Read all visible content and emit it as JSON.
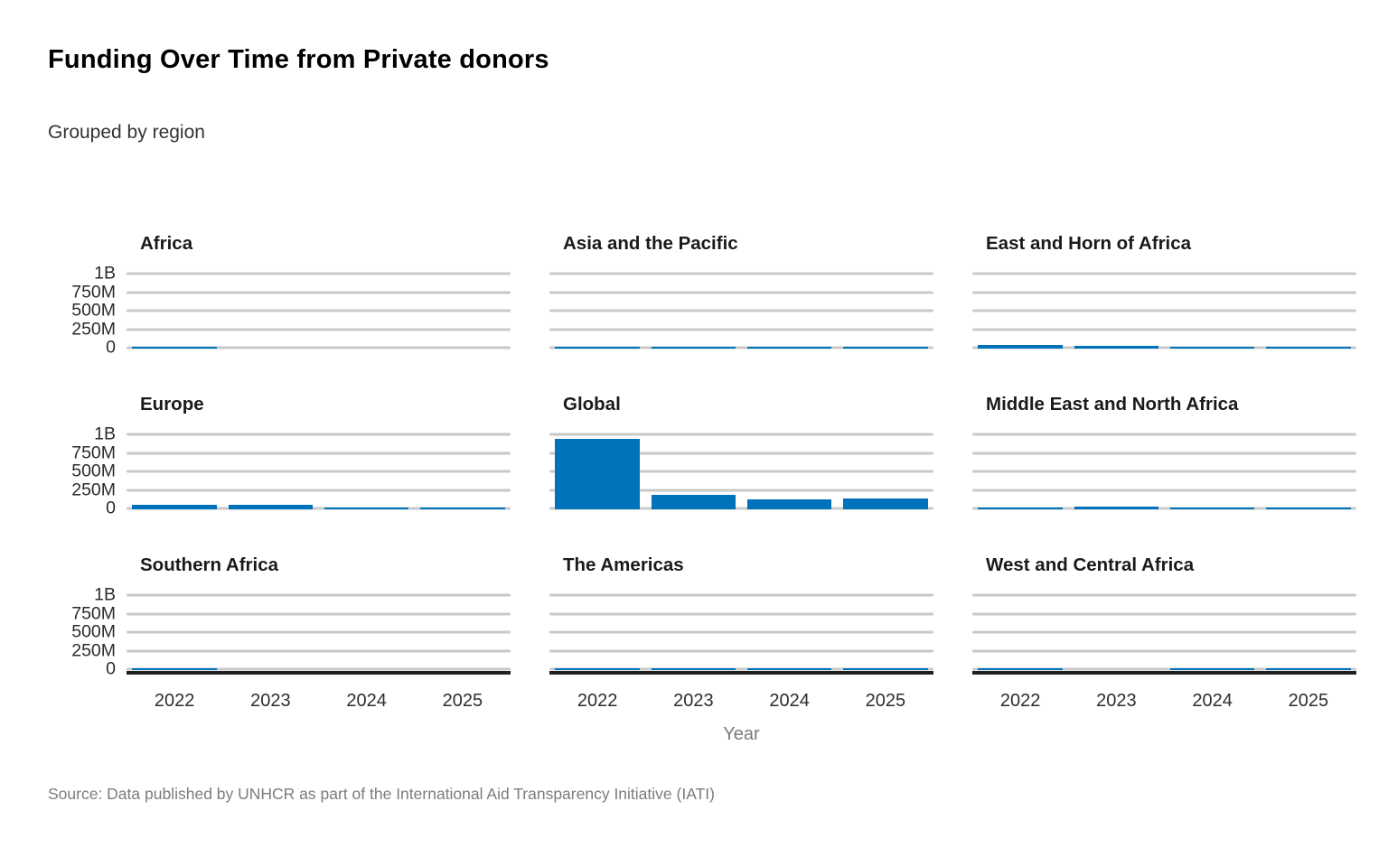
{
  "title": "Funding Over Time from Private donors",
  "subtitle": "Grouped by region",
  "source_note": "Source: Data published by UNHCR as part of the International Aid Transparency Initiative (IATI)",
  "colors": {
    "bar": "#0072BC",
    "gridline": "#C9C9C9",
    "axis_line": "#1F1F1F",
    "muted_text": "#7A7A7A"
  },
  "chart_data": {
    "type": "bar",
    "layout": "small-multiples 3x3, shared axes",
    "categories": [
      "2022",
      "2023",
      "2024",
      "2025"
    ],
    "xlabel": "Year",
    "ylabel": "",
    "y_ticks": [
      "1B",
      "750M",
      "500M",
      "250M",
      "0"
    ],
    "ylim": [
      0,
      1000000000
    ],
    "grid": true,
    "values_unit": "millions",
    "facets": [
      {
        "region": "Africa",
        "values_m": [
          3,
          0,
          0,
          0
        ]
      },
      {
        "region": "Asia and the Pacific",
        "values_m": [
          30,
          30,
          20,
          28
        ]
      },
      {
        "region": "East and Horn of Africa",
        "values_m": [
          45,
          36,
          22,
          22
        ]
      },
      {
        "region": "Europe",
        "values_m": [
          60,
          58,
          5,
          5
        ]
      },
      {
        "region": "Global",
        "values_m": [
          950,
          200,
          140,
          150
        ]
      },
      {
        "region": "Middle East and North Africa",
        "values_m": [
          20,
          34,
          12,
          25
        ]
      },
      {
        "region": "Southern Africa",
        "values_m": [
          4,
          0,
          0,
          0
        ]
      },
      {
        "region": "The Americas",
        "values_m": [
          8,
          15,
          6,
          8
        ]
      },
      {
        "region": "West and Central Africa",
        "values_m": [
          25,
          0,
          4,
          6
        ]
      }
    ]
  }
}
